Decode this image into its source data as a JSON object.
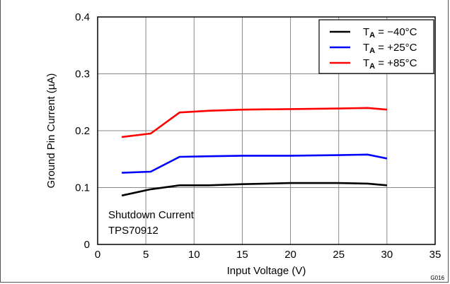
{
  "chart_data": {
    "type": "line",
    "xlabel": "Input Voltage (V)",
    "ylabel": "Ground Pin Current (µA)",
    "xlim": [
      0,
      35
    ],
    "ylim": [
      0,
      0.4
    ],
    "xticks": [
      "0",
      "5",
      "10",
      "15",
      "20",
      "25",
      "30",
      "35"
    ],
    "yticks": [
      "0",
      "0.1",
      "0.2",
      "0.3",
      "0.4"
    ],
    "grid": true,
    "legend_position": "top-right",
    "annotation": [
      "Shutdown Current",
      "TPS70912"
    ],
    "figure_code": "G016",
    "series": [
      {
        "name": "T_A = −40°C",
        "name_main": "T",
        "name_sub": "A",
        "name_rest": " = −40°C",
        "color": "#000000",
        "x": [
          2.5,
          5.5,
          8.5,
          11.5,
          15,
          20,
          25,
          28,
          30
        ],
        "y": [
          0.086,
          0.097,
          0.104,
          0.104,
          0.106,
          0.108,
          0.108,
          0.107,
          0.104
        ]
      },
      {
        "name": "T_A = +25°C",
        "name_main": "T",
        "name_sub": "A",
        "name_rest": " = +25°C",
        "color": "#0000ff",
        "x": [
          2.5,
          5.5,
          8.5,
          11.5,
          15,
          20,
          25,
          28,
          30
        ],
        "y": [
          0.126,
          0.128,
          0.154,
          0.155,
          0.156,
          0.156,
          0.157,
          0.158,
          0.151
        ]
      },
      {
        "name": "T_A = +85°C",
        "name_main": "T",
        "name_sub": "A",
        "name_rest": " = +85°C",
        "color": "#ff0000",
        "x": [
          2.5,
          5.5,
          8.5,
          11.5,
          15,
          20,
          25,
          28,
          30
        ],
        "y": [
          0.189,
          0.195,
          0.232,
          0.235,
          0.237,
          0.238,
          0.239,
          0.24,
          0.237
        ]
      }
    ]
  }
}
